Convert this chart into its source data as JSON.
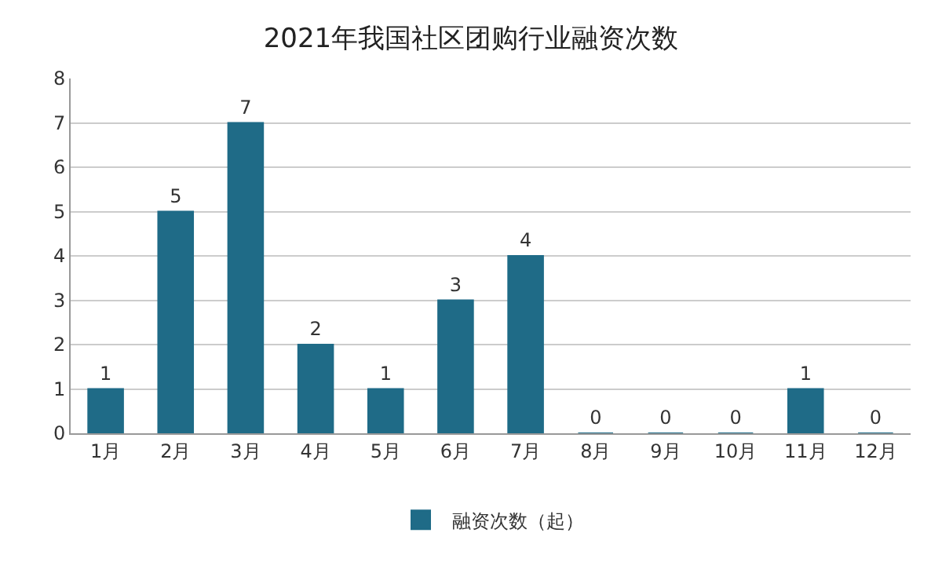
{
  "chart_data": {
    "type": "bar",
    "title": "2021年我国社区团购行业融资次数",
    "categories": [
      "1月",
      "2月",
      "3月",
      "4月",
      "5月",
      "6月",
      "7月",
      "8月",
      "9月",
      "10月",
      "11月",
      "12月"
    ],
    "series": [
      {
        "name": "融资次数（起）",
        "color": "#1f6b87",
        "values": [
          1,
          5,
          7,
          2,
          1,
          3,
          4,
          0,
          0,
          0,
          1,
          0
        ]
      }
    ],
    "ylim": [
      0,
      8
    ],
    "yticks": [
      0,
      1,
      2,
      3,
      4,
      5,
      6,
      7,
      8
    ],
    "grid": "y",
    "legend": "bottom",
    "data_labels": true
  }
}
